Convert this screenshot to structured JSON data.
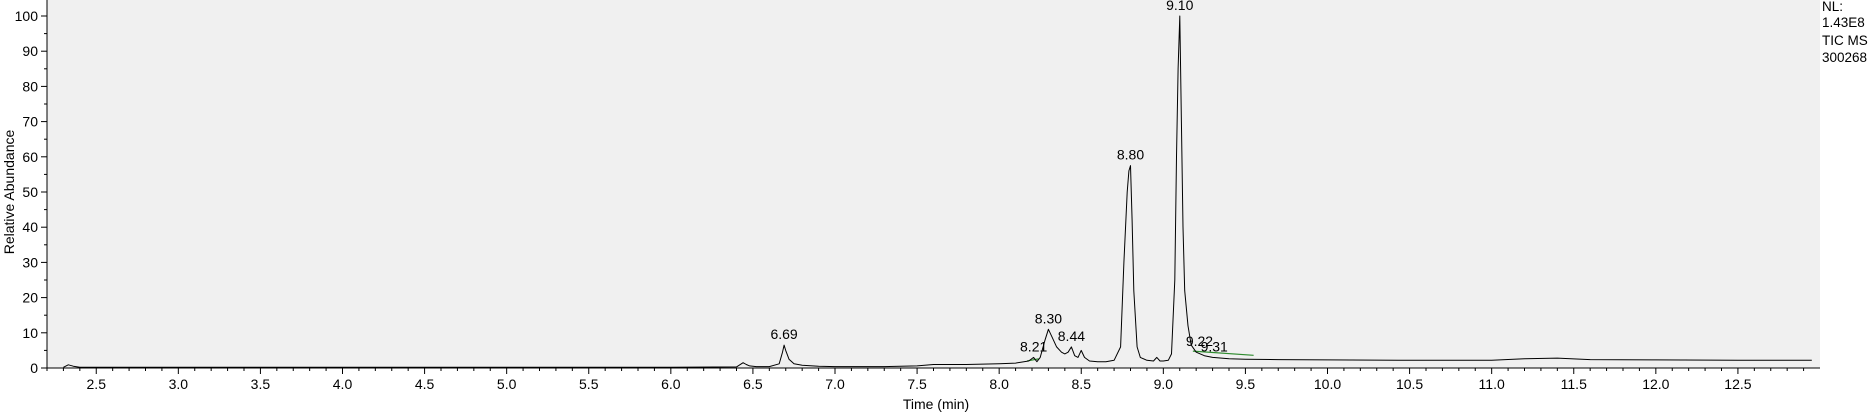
{
  "chart_data": {
    "type": "line",
    "title": "",
    "xlabel": "Time (min)",
    "ylabel": "Relative Abundance",
    "xlim": [
      2.2,
      13.0
    ],
    "ylim": [
      0,
      100
    ],
    "x_ticks": [
      2.5,
      3.0,
      3.5,
      4.0,
      4.5,
      5.0,
      5.5,
      6.0,
      6.5,
      7.0,
      7.5,
      8.0,
      8.5,
      9.0,
      9.5,
      10.0,
      10.5,
      11.0,
      11.5,
      12.0,
      12.5
    ],
    "x_tick_labels": [
      "2.5",
      "3.0",
      "3.5",
      "4.0",
      "4.5",
      "5.0",
      "5.5",
      "6.0",
      "6.5",
      "7.0",
      "7.5",
      "8.0",
      "8.5",
      "9.0",
      "9.5",
      "10.0",
      "10.5",
      "11.0",
      "11.5",
      "12.0",
      "12.5"
    ],
    "y_ticks": [
      0,
      10,
      20,
      30,
      40,
      50,
      60,
      70,
      80,
      90,
      100
    ],
    "y_tick_labels": [
      "0",
      "10",
      "20",
      "30",
      "40",
      "50",
      "60",
      "70",
      "80",
      "90",
      "100"
    ],
    "grid": false,
    "plot_background": "#f0f0f0",
    "line_color": "#000000",
    "baseline_color": "#2e8b2e",
    "series": [
      {
        "x": [
          2.3,
          2.33,
          2.36,
          2.4,
          3.0,
          4.0,
          5.0,
          6.0,
          6.4,
          6.44,
          6.46,
          6.48,
          6.52,
          6.6,
          6.66,
          6.68,
          6.69,
          6.7,
          6.72,
          6.75,
          6.8,
          6.9,
          7.0,
          7.3,
          7.5,
          7.6,
          7.8,
          8.0,
          8.1,
          8.18,
          8.21,
          8.23,
          8.25,
          8.28,
          8.3,
          8.32,
          8.35,
          8.38,
          8.4,
          8.42,
          8.44,
          8.46,
          8.48,
          8.5,
          8.52,
          8.55,
          8.6,
          8.65,
          8.7,
          8.74,
          8.76,
          8.78,
          8.79,
          8.8,
          8.81,
          8.82,
          8.84,
          8.86,
          8.9,
          8.94,
          8.96,
          8.98,
          9.0,
          9.03,
          9.05,
          9.07,
          9.08,
          9.09,
          9.1,
          9.11,
          9.12,
          9.13,
          9.15,
          9.17,
          9.2,
          9.25,
          9.3,
          9.4,
          9.5,
          9.7,
          10.0,
          10.5,
          11.0,
          11.2,
          11.4,
          11.6,
          12.0,
          12.5,
          12.95
        ],
        "y": [
          0.2,
          0.9,
          0.5,
          0.2,
          0.2,
          0.2,
          0.2,
          0.2,
          0.3,
          1.5,
          1.0,
          0.6,
          0.4,
          0.4,
          1.2,
          4.5,
          6.5,
          5.0,
          2.5,
          1.2,
          0.8,
          0.5,
          0.4,
          0.4,
          0.6,
          1.0,
          1.0,
          1.2,
          1.4,
          2.0,
          3.0,
          1.8,
          3.0,
          8.0,
          11.0,
          9.0,
          6.0,
          4.5,
          4.0,
          4.5,
          6.0,
          3.5,
          3.0,
          5.0,
          3.0,
          2.0,
          1.8,
          1.8,
          2.2,
          6.0,
          30.0,
          50.0,
          56.0,
          57.5,
          42.0,
          22.0,
          6.0,
          3.0,
          2.2,
          2.0,
          3.0,
          2.0,
          2.0,
          2.2,
          4.0,
          25.0,
          60.0,
          85.0,
          100.0,
          70.0,
          40.0,
          22.0,
          12.0,
          6.5,
          4.5,
          3.5,
          3.0,
          2.6,
          2.5,
          2.4,
          2.3,
          2.2,
          2.2,
          2.6,
          2.8,
          2.4,
          2.3,
          2.2,
          2.2
        ]
      }
    ],
    "baseline_segments": [
      {
        "x": [
          8.17,
          8.24
        ],
        "y": [
          2.0,
          2.6
        ]
      },
      {
        "x": [
          9.18,
          9.55
        ],
        "y": [
          4.8,
          3.6
        ]
      }
    ],
    "peak_labels": [
      {
        "text": "6.69",
        "x": 6.69,
        "y": 6.5
      },
      {
        "text": "8.21",
        "x": 8.21,
        "y": 3.0
      },
      {
        "text": "8.30",
        "x": 8.3,
        "y": 11.0
      },
      {
        "text": "8.44",
        "x": 8.44,
        "y": 6.0
      },
      {
        "text": "8.80",
        "x": 8.8,
        "y": 57.5
      },
      {
        "text": "9.10",
        "x": 9.1,
        "y": 100.0
      },
      {
        "text": "9.22",
        "x": 9.22,
        "y": 4.5
      },
      {
        "text": "9.31",
        "x": 9.31,
        "y": 3.0
      }
    ],
    "annotations": [
      "NL:",
      "1.43E8",
      "TIC  MS",
      "300268"
    ]
  }
}
